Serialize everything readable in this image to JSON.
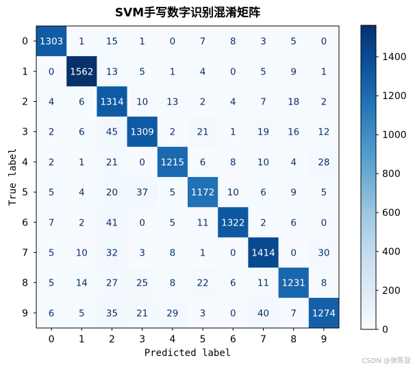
{
  "chart_data": {
    "type": "heatmap",
    "title": "SVM手写数字识别混淆矩阵",
    "xlabel": "Predicted label",
    "ylabel": "True label",
    "x_categories": [
      "0",
      "1",
      "2",
      "3",
      "4",
      "5",
      "6",
      "7",
      "8",
      "9"
    ],
    "y_categories": [
      "0",
      "1",
      "2",
      "3",
      "4",
      "5",
      "6",
      "7",
      "8",
      "9"
    ],
    "matrix": [
      [
        1303,
        1,
        15,
        1,
        0,
        7,
        8,
        3,
        5,
        0
      ],
      [
        0,
        1562,
        13,
        5,
        1,
        4,
        0,
        5,
        9,
        1
      ],
      [
        4,
        6,
        1314,
        10,
        13,
        2,
        4,
        7,
        18,
        2
      ],
      [
        2,
        6,
        45,
        1309,
        2,
        21,
        1,
        19,
        16,
        12
      ],
      [
        2,
        1,
        21,
        0,
        1215,
        6,
        8,
        10,
        4,
        28
      ],
      [
        5,
        4,
        20,
        37,
        5,
        1172,
        10,
        6,
        9,
        5
      ],
      [
        7,
        2,
        41,
        0,
        5,
        11,
        1322,
        2,
        6,
        0
      ],
      [
        5,
        10,
        32,
        3,
        8,
        1,
        0,
        1414,
        0,
        30
      ],
      [
        5,
        14,
        27,
        25,
        8,
        22,
        6,
        11,
        1231,
        8
      ],
      [
        6,
        5,
        35,
        21,
        29,
        3,
        0,
        40,
        7,
        1274
      ]
    ],
    "colormap": "Blues",
    "colorbar": {
      "min": 0,
      "max": 1562,
      "ticks": [
        0,
        200,
        400,
        600,
        800,
        1000,
        1200,
        1400
      ]
    },
    "colors": {
      "low": "#f7fbff",
      "high": "#08306b",
      "text_dark": "#08306b",
      "text_light": "#ffffff"
    }
  },
  "watermark": "CSDN @张陈亚"
}
